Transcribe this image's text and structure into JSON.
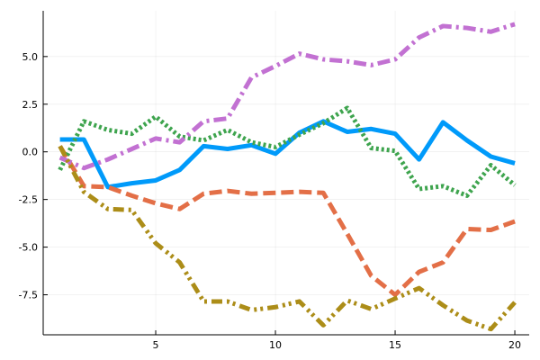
{
  "chart_data": {
    "type": "line",
    "title": "",
    "xlabel": "",
    "ylabel": "",
    "xlim": [
      0.3,
      20.6
    ],
    "ylim": [
      -9.6,
      7.4
    ],
    "xticks": [
      5,
      10,
      15,
      20
    ],
    "xtick_labels": [
      "5",
      "10",
      "15",
      "20"
    ],
    "yticks": [
      -7.5,
      -5.0,
      -2.5,
      0.0,
      2.5,
      5.0
    ],
    "ytick_labels": [
      "-7.5",
      "-5.0",
      "-2.5",
      "0.0",
      "2.5",
      "5.0"
    ],
    "grid": true,
    "legend": "none",
    "x": [
      1,
      2,
      3,
      4,
      5,
      6,
      7,
      8,
      9,
      10,
      11,
      12,
      13,
      14,
      15,
      16,
      17,
      18,
      19,
      20
    ],
    "series": [
      {
        "color": "#009AFA",
        "dash": "solid",
        "values": [
          0.65,
          0.65,
          -1.85,
          -1.65,
          -1.5,
          -0.95,
          0.3,
          0.15,
          0.35,
          -0.1,
          1.0,
          1.6,
          1.05,
          1.2,
          0.95,
          -0.4,
          1.55,
          0.6,
          -0.25,
          -0.6
        ]
      },
      {
        "color": "#E36F47",
        "dash": "dash",
        "values": [
          0.3,
          -1.8,
          -1.85,
          -2.3,
          -2.7,
          -3.0,
          -2.2,
          -2.05,
          -2.2,
          -2.15,
          -2.1,
          -2.15,
          -4.3,
          -6.5,
          -7.5,
          -6.3,
          -5.8,
          -4.05,
          -4.1,
          -3.65
        ]
      },
      {
        "color": "#3EA44E",
        "dash": "dot",
        "values": [
          -0.95,
          1.6,
          1.15,
          0.95,
          1.85,
          0.8,
          0.6,
          1.15,
          0.5,
          0.25,
          0.9,
          1.5,
          2.3,
          0.2,
          0.05,
          -1.95,
          -1.8,
          -2.3,
          -0.7,
          -1.75
        ]
      },
      {
        "color": "#C271D2",
        "dash": "dashdot",
        "values": [
          -0.3,
          -0.85,
          -0.4,
          0.15,
          0.7,
          0.5,
          1.6,
          1.75,
          3.9,
          4.5,
          5.15,
          4.85,
          4.75,
          4.55,
          4.85,
          6.0,
          6.6,
          6.5,
          6.3,
          6.7
        ]
      },
      {
        "color": "#AC8D18",
        "dash": "dashdotdot",
        "values": [
          0.3,
          -2.1,
          -3.0,
          -3.05,
          -4.8,
          -5.8,
          -7.85,
          -7.85,
          -8.3,
          -8.15,
          -7.85,
          -9.1,
          -7.8,
          -8.25,
          -7.7,
          -7.15,
          -8.05,
          -8.85,
          -9.3,
          -7.9
        ]
      }
    ]
  }
}
